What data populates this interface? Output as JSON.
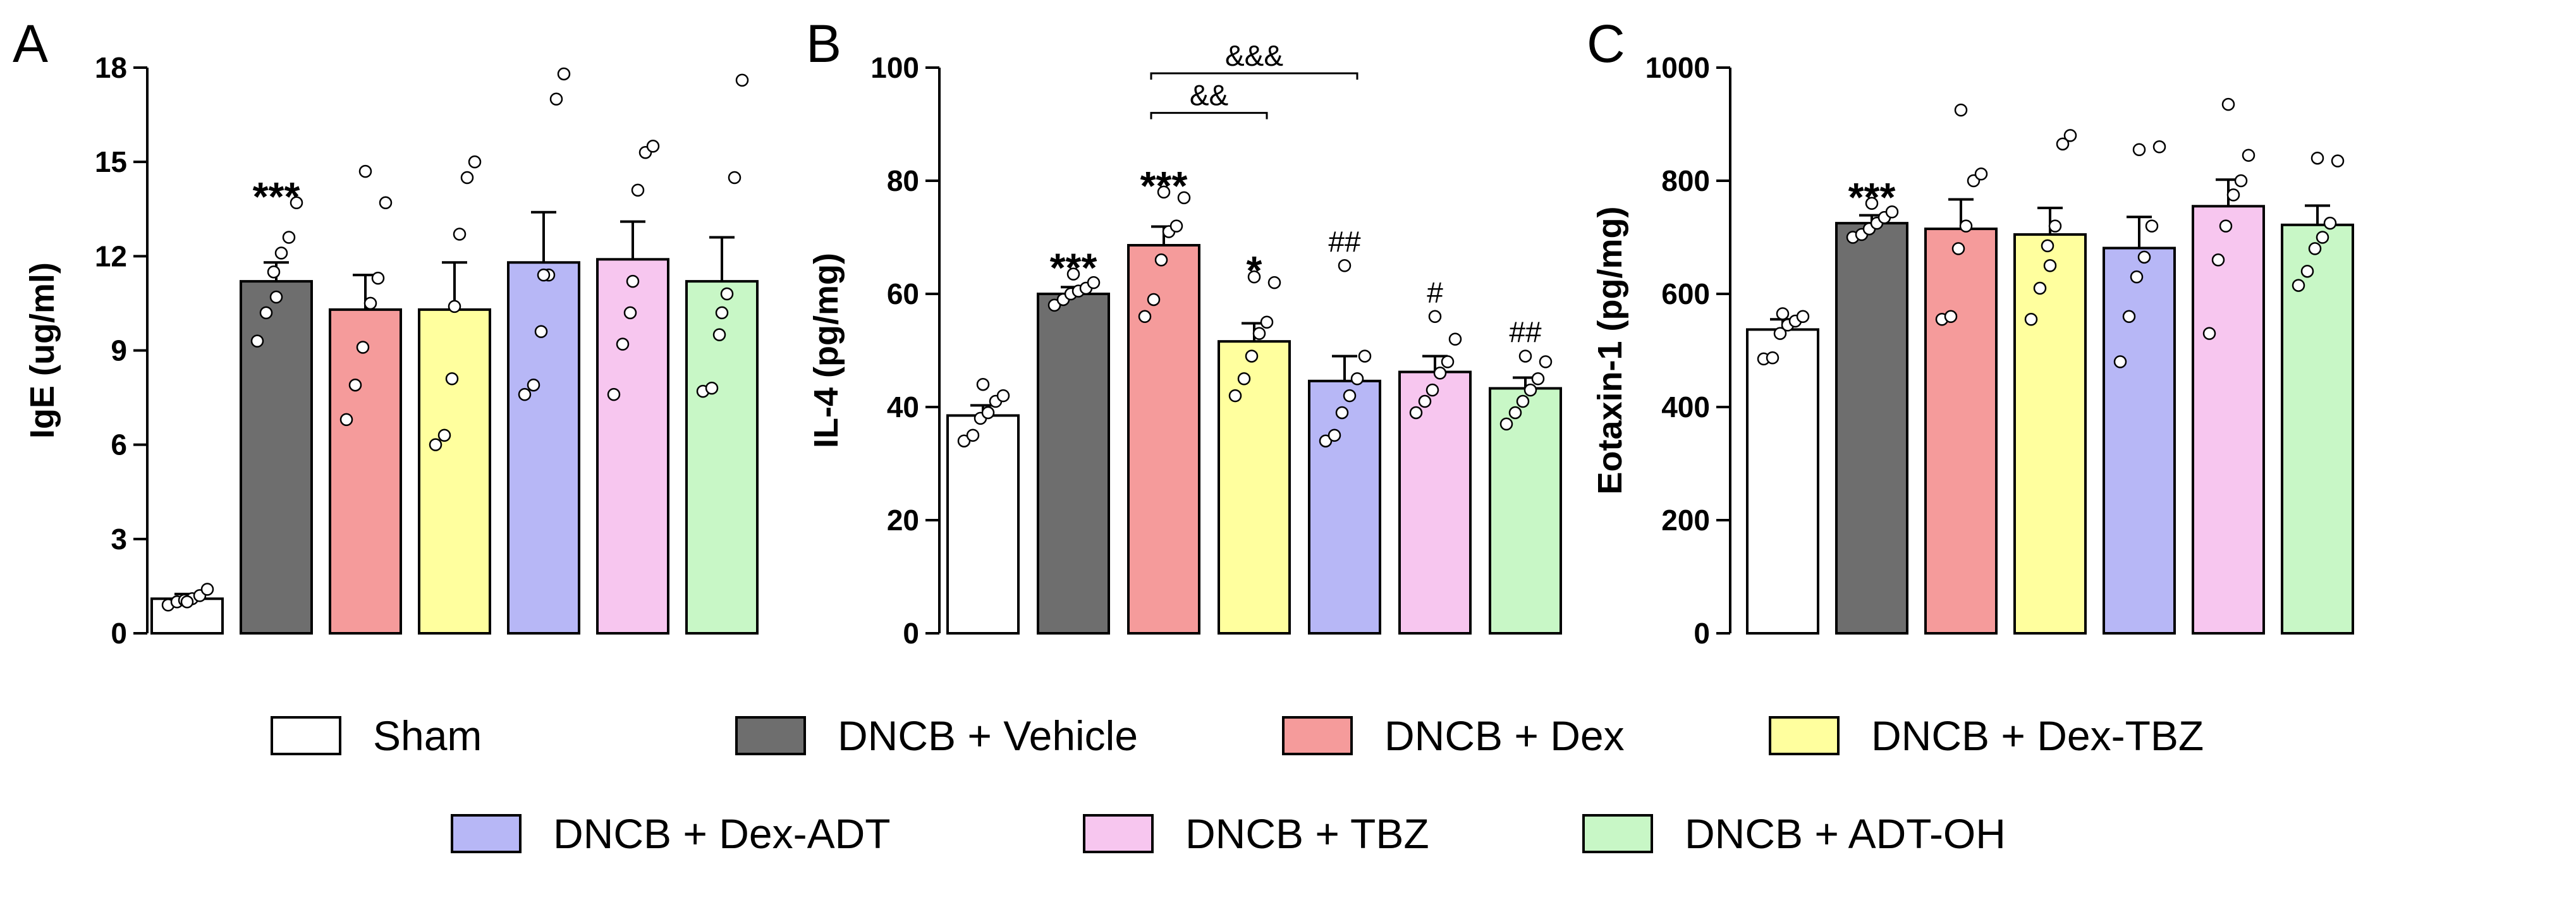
{
  "groups": [
    {
      "name": "Sham",
      "color": "#ffffff"
    },
    {
      "name": "DNCB + Vehicle",
      "color": "#6e6e6e"
    },
    {
      "name": "DNCB + Dex",
      "color": "#f59b9b"
    },
    {
      "name": "DNCB + Dex-TBZ",
      "color": "#ffff9e"
    },
    {
      "name": "DNCB + Dex-ADT",
      "color": "#b7b7f6"
    },
    {
      "name": "DNCB + TBZ",
      "color": "#f7c6ef"
    },
    {
      "name": "DNCB + ADT-OH",
      "color": "#c8f7c6"
    }
  ],
  "chart_data": [
    {
      "type": "bar",
      "panel": "A",
      "ylabel": "IgE (ug/ml)",
      "ylim": [
        0,
        18
      ],
      "yticks": [
        "0",
        "3",
        "6",
        "9",
        "12",
        "15",
        "18"
      ],
      "categories": [
        "Sham",
        "DNCB + Vehicle",
        "DNCB + Dex",
        "DNCB + Dex-TBZ",
        "DNCB + Dex-ADT",
        "DNCB + TBZ",
        "DNCB + ADT-OH"
      ],
      "values": [
        1.1,
        11.2,
        10.3,
        10.3,
        11.8,
        11.9,
        11.2
      ],
      "errors": [
        0.15,
        0.6,
        1.1,
        1.5,
        1.6,
        1.2,
        1.4
      ],
      "points": [
        [
          0.9,
          1.0,
          1.05,
          1.1,
          1.2,
          1.4,
          1.0
        ],
        [
          9.3,
          10.2,
          11.5,
          12.1,
          12.6,
          13.7,
          10.7
        ],
        [
          6.8,
          7.9,
          9.1,
          10.5,
          11.3,
          13.7,
          14.7
        ],
        [
          6.0,
          6.3,
          8.1,
          12.7,
          14.5,
          15.0,
          10.4
        ],
        [
          7.6,
          7.9,
          9.6,
          11.4,
          17.0,
          17.8,
          11.4
        ],
        [
          7.6,
          9.2,
          10.2,
          14.1,
          15.3,
          15.5,
          11.2
        ],
        [
          7.7,
          7.8,
          9.5,
          10.8,
          14.5,
          17.6,
          10.2
        ]
      ],
      "annotations": [
        {
          "bar": 1,
          "text": "***"
        }
      ]
    },
    {
      "type": "bar",
      "panel": "B",
      "ylabel": "IL-4 (pg/mg)",
      "ylim": [
        0,
        100
      ],
      "yticks": [
        "0",
        "20",
        "40",
        "60",
        "80",
        "100"
      ],
      "categories": [
        "Sham",
        "DNCB + Vehicle",
        "DNCB + Dex",
        "DNCB + Dex-TBZ",
        "DNCB + Dex-ADT",
        "DNCB + TBZ",
        "DNCB + ADT-OH"
      ],
      "values": [
        38.5,
        60.0,
        68.6,
        51.6,
        44.6,
        46.2,
        43.3
      ],
      "errors": [
        1.8,
        1.2,
        3.3,
        3.2,
        4.4,
        2.8,
        1.9
      ],
      "points": [
        [
          34,
          35,
          38,
          39,
          41,
          42,
          44
        ],
        [
          58,
          59,
          60,
          60.5,
          61,
          62,
          63.5
        ],
        [
          56,
          59,
          66,
          71,
          72,
          77,
          78
        ],
        [
          42,
          45,
          49,
          53,
          55,
          62,
          63
        ],
        [
          34,
          35,
          39,
          42,
          45,
          49,
          65
        ],
        [
          39,
          41,
          43,
          46,
          48,
          52,
          56
        ],
        [
          37,
          39,
          41,
          43,
          45,
          48,
          49
        ]
      ],
      "annotations": [
        {
          "bar": 1,
          "text": "***"
        },
        {
          "bar": 2,
          "text": "***"
        },
        {
          "bar": 3,
          "text": "*"
        },
        {
          "bar": 4,
          "text": "##"
        },
        {
          "bar": 5,
          "text": "#"
        },
        {
          "bar": 6,
          "text": "##"
        }
      ],
      "brackets": [
        {
          "from": 2,
          "to": 4,
          "y": 99,
          "text": "&&&"
        },
        {
          "from": 2,
          "to": 3,
          "y": 92,
          "text": "&&"
        }
      ]
    },
    {
      "type": "bar",
      "panel": "C",
      "ylabel": "Eotaxin-1 (pg/mg)",
      "ylim": [
        0,
        1000
      ],
      "yticks": [
        "0",
        "200",
        "400",
        "600",
        "800",
        "1000"
      ],
      "categories": [
        "Sham",
        "DNCB + Vehicle",
        "DNCB + Dex",
        "DNCB + Dex-TBZ",
        "DNCB + Dex-ADT",
        "DNCB + TBZ",
        "DNCB + ADT-OH"
      ],
      "values": [
        537,
        725,
        715,
        705,
        681,
        755,
        722
      ],
      "errors": [
        18,
        14,
        52,
        47,
        55,
        47,
        34
      ],
      "points": [
        [
          485,
          487,
          530,
          545,
          552,
          560,
          565
        ],
        [
          700,
          705,
          715,
          725,
          735,
          745,
          760
        ],
        [
          555,
          560,
          680,
          720,
          800,
          812,
          925
        ],
        [
          555,
          610,
          685,
          720,
          865,
          880,
          650
        ],
        [
          480,
          560,
          630,
          665,
          720,
          860,
          855
        ],
        [
          530,
          660,
          720,
          775,
          800,
          845,
          935
        ],
        [
          615,
          640,
          680,
          700,
          725,
          835,
          840
        ]
      ],
      "annotations": [
        {
          "bar": 1,
          "text": "***"
        }
      ]
    }
  ]
}
